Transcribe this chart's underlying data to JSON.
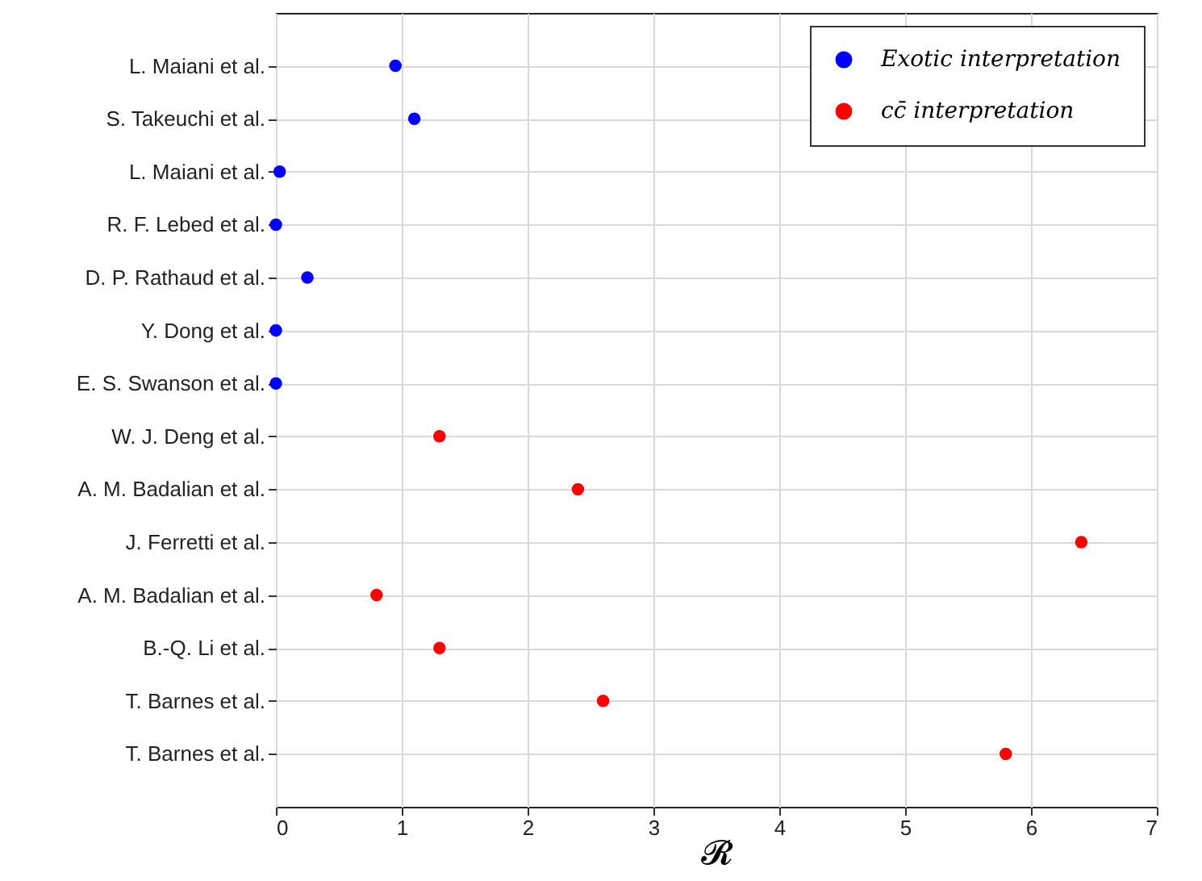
{
  "chart_data": {
    "type": "scatter",
    "orientation": "horizontal",
    "xlabel": "𝓡",
    "categories": [
      "L. Maiani et al.",
      "S. Takeuchi et al.",
      "L. Maiani et al.",
      "R. F. Lebed et al.",
      "D. P. Rathaud et al.",
      "Y. Dong et al.",
      "E. S. Swanson et al.",
      "W. J. Deng et al.",
      "A. M. Badalian et al.",
      "J. Ferretti et al.",
      "A. M. Badalian et al.",
      "B.-Q. Li et al.",
      "T. Barnes et al.",
      "T. Barnes et al."
    ],
    "series": [
      {
        "name": "Exotic interpretation",
        "color": "#0000ff",
        "values": [
          0.95,
          1.1,
          0.03,
          0,
          0.25,
          0,
          0,
          null,
          null,
          null,
          null,
          null,
          null,
          null
        ]
      },
      {
        "name": "cc̄ interpretation",
        "color": "#ff0000",
        "values": [
          null,
          null,
          null,
          null,
          null,
          null,
          null,
          1.3,
          2.4,
          6.4,
          0.8,
          1.3,
          2.6,
          5.8
        ]
      }
    ],
    "xlim": [
      0,
      7
    ],
    "xticks": [
      0,
      1,
      2,
      3,
      4,
      5,
      6,
      7
    ],
    "grid": true,
    "legend": "top right",
    "marker": "circle"
  }
}
